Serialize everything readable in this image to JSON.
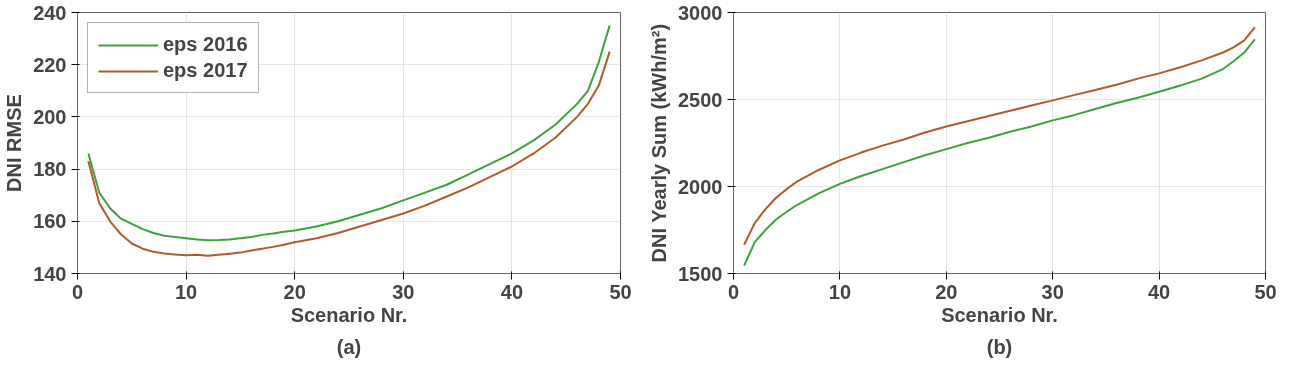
{
  "chart_data": [
    {
      "type": "line",
      "xlabel": "Scenario Nr.",
      "ylabel": "DNI RMSE",
      "annotations": [
        "(a)"
      ],
      "xlim": [
        0,
        50
      ],
      "ylim": [
        140,
        240
      ],
      "xticks": [
        0,
        10,
        20,
        30,
        40,
        50
      ],
      "yticks": [
        140,
        160,
        180,
        200,
        220,
        240
      ],
      "grid": true,
      "legend": "top left",
      "series": [
        {
          "name": "eps 2016",
          "color": "#3ca33a",
          "x": [
            1,
            2,
            3,
            4,
            5,
            6,
            7,
            8,
            9,
            10,
            11,
            12,
            13,
            14,
            15,
            16,
            17,
            18,
            19,
            20,
            22,
            24,
            26,
            28,
            30,
            32,
            34,
            36,
            38,
            40,
            42,
            44,
            46,
            47,
            48,
            49
          ],
          "values": [
            186,
            171,
            165,
            161,
            159,
            157,
            155.5,
            154.5,
            154,
            153.5,
            153,
            152.7,
            152.8,
            153,
            153.5,
            154,
            154.8,
            155.3,
            156,
            156.5,
            158,
            160,
            162.5,
            165,
            168,
            171,
            174,
            178,
            182,
            186,
            191,
            197,
            205,
            210,
            221,
            235
          ]
        },
        {
          "name": "eps 2017",
          "color": "#b5592a",
          "x": [
            1,
            2,
            3,
            4,
            5,
            6,
            7,
            8,
            9,
            10,
            11,
            12,
            13,
            14,
            15,
            16,
            17,
            18,
            19,
            20,
            22,
            24,
            26,
            28,
            30,
            32,
            34,
            36,
            38,
            40,
            42,
            44,
            46,
            47,
            48,
            49
          ],
          "values": [
            183,
            167,
            160,
            155,
            151.5,
            149.5,
            148.3,
            147.7,
            147.3,
            147,
            147.2,
            146.8,
            147.2,
            147.6,
            148,
            148.8,
            149.5,
            150.2,
            151,
            152,
            153.5,
            155.5,
            158,
            160.5,
            163,
            166,
            169.5,
            173,
            177,
            181,
            186,
            192,
            200,
            205,
            212,
            225
          ]
        }
      ]
    },
    {
      "type": "line",
      "xlabel": "Scenario Nr.",
      "ylabel": "DNI Yearly Sum (kWh/m²)",
      "annotations": [
        "(b)"
      ],
      "xlim": [
        0,
        50
      ],
      "ylim": [
        1500,
        3000
      ],
      "xticks": [
        0,
        10,
        20,
        30,
        40,
        50
      ],
      "yticks": [
        1500,
        2000,
        2500,
        3000
      ],
      "grid": true,
      "series": [
        {
          "color": "#3ca33a",
          "x": [
            1,
            2,
            3,
            4,
            5,
            6,
            8,
            10,
            12,
            14,
            16,
            18,
            20,
            22,
            24,
            26,
            28,
            30,
            32,
            34,
            36,
            38,
            40,
            42,
            44,
            46,
            47,
            48,
            49
          ],
          "values": [
            1545,
            1680,
            1750,
            1810,
            1855,
            1895,
            1960,
            2015,
            2060,
            2100,
            2140,
            2180,
            2215,
            2250,
            2280,
            2315,
            2345,
            2380,
            2410,
            2445,
            2480,
            2510,
            2545,
            2580,
            2620,
            2675,
            2720,
            2770,
            2845
          ]
        },
        {
          "color": "#b5592a",
          "x": [
            1,
            2,
            3,
            4,
            5,
            6,
            8,
            10,
            12,
            14,
            16,
            18,
            20,
            22,
            24,
            26,
            28,
            30,
            32,
            34,
            36,
            38,
            40,
            42,
            44,
            46,
            47,
            48,
            49
          ],
          "values": [
            1665,
            1790,
            1870,
            1935,
            1985,
            2030,
            2095,
            2150,
            2195,
            2235,
            2270,
            2310,
            2345,
            2375,
            2405,
            2435,
            2465,
            2495,
            2525,
            2555,
            2585,
            2620,
            2650,
            2685,
            2725,
            2770,
            2800,
            2840,
            2915
          ]
        }
      ]
    }
  ]
}
